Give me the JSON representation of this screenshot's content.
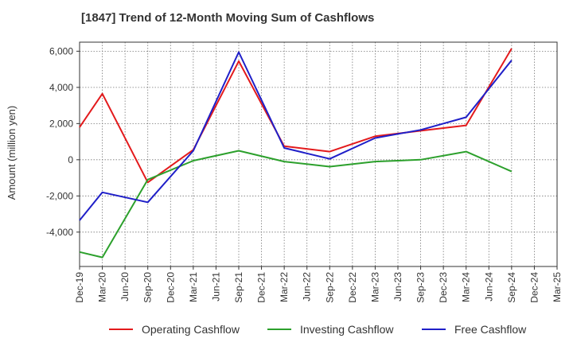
{
  "chart_data": {
    "type": "line",
    "title": "[1847]  Trend of 12-Month Moving Sum of Cashflows",
    "xlabel": "",
    "ylabel": "Amount (million yen)",
    "categories": [
      "Dec-19",
      "Mar-20",
      "Jun-20",
      "Sep-20",
      "Dec-20",
      "Mar-21",
      "Jun-21",
      "Sep-21",
      "Dec-21",
      "Mar-22",
      "Jun-22",
      "Sep-22",
      "Dec-22",
      "Mar-23",
      "Jun-23",
      "Sep-23",
      "Dec-23",
      "Mar-24",
      "Jun-24",
      "Sep-24",
      "Dec-24",
      "Mar-25"
    ],
    "ylim": [
      -5900,
      6500
    ],
    "yticks": [
      6000,
      4000,
      2000,
      0,
      -2000,
      -4000
    ],
    "ytick_labels": [
      "6,000",
      "4,000",
      "2,000",
      "0",
      "-2,000",
      "-4,000"
    ],
    "grid": true,
    "legend_position": "bottom",
    "series": [
      {
        "name": "Operating Cashflow",
        "color": "#e31a1c",
        "values": [
          1800,
          3650,
          null,
          -1250,
          null,
          550,
          null,
          5450,
          null,
          750,
          null,
          450,
          null,
          1300,
          null,
          1600,
          null,
          1900,
          null,
          6150,
          null,
          null
        ]
      },
      {
        "name": "Investing Cashflow",
        "color": "#2ca02c",
        "values": [
          -5100,
          -5400,
          null,
          -1100,
          null,
          -50,
          null,
          500,
          null,
          -100,
          null,
          -380,
          null,
          -100,
          null,
          0,
          null,
          450,
          null,
          -650,
          null,
          null
        ]
      },
      {
        "name": "Free Cashflow",
        "color": "#1f1fc8",
        "values": [
          -3350,
          -1800,
          null,
          -2350,
          null,
          500,
          null,
          5950,
          null,
          650,
          null,
          50,
          null,
          1200,
          null,
          1650,
          null,
          2350,
          null,
          5500,
          null,
          null
        ]
      }
    ]
  }
}
